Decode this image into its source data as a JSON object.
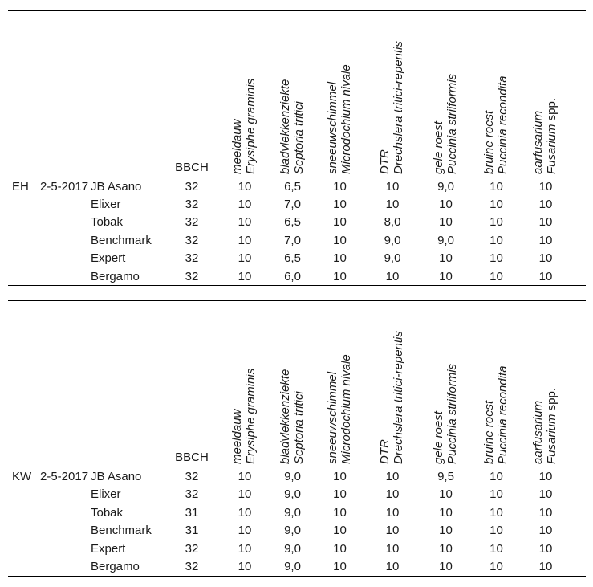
{
  "labels": {
    "bbch": "BBCH"
  },
  "disease_columns": [
    {
      "dutch": "meeldauw",
      "latin": "Erysiphe graminis",
      "latin_suffix": ""
    },
    {
      "dutch": "bladvlekkenziekte",
      "latin": "Septoria tritici",
      "latin_suffix": ""
    },
    {
      "dutch": "sneeuwschimmel",
      "latin": "Microdochium nivale",
      "latin_suffix": ""
    },
    {
      "dutch": "DTR",
      "latin": "Drechslera tritici-repentis",
      "latin_suffix": ""
    },
    {
      "dutch": "gele roest",
      "latin": "Puccinia striiformis",
      "latin_suffix": ""
    },
    {
      "dutch": "bruine roest",
      "latin": "Puccinia recondita",
      "latin_suffix": ""
    },
    {
      "dutch": "aarfusarium",
      "latin": "Fusarium",
      "latin_suffix": " spp."
    }
  ],
  "tables": [
    {
      "site": "EH",
      "date": "2-5-2017",
      "rows": [
        {
          "variety": "JB Asano",
          "bbch": "32",
          "values": [
            "10",
            "6,5",
            "10",
            "10",
            "9,0",
            "10",
            "10"
          ]
        },
        {
          "variety": "Elixer",
          "bbch": "32",
          "values": [
            "10",
            "7,0",
            "10",
            "10",
            "10",
            "10",
            "10"
          ]
        },
        {
          "variety": "Tobak",
          "bbch": "32",
          "values": [
            "10",
            "6,5",
            "10",
            "8,0",
            "10",
            "10",
            "10"
          ]
        },
        {
          "variety": "Benchmark",
          "bbch": "32",
          "values": [
            "10",
            "7,0",
            "10",
            "9,0",
            "9,0",
            "10",
            "10"
          ]
        },
        {
          "variety": "Expert",
          "bbch": "32",
          "values": [
            "10",
            "6,5",
            "10",
            "9,0",
            "10",
            "10",
            "10"
          ]
        },
        {
          "variety": "Bergamo",
          "bbch": "32",
          "values": [
            "10",
            "6,0",
            "10",
            "10",
            "10",
            "10",
            "10"
          ]
        }
      ]
    },
    {
      "site": "KW",
      "date": "2-5-2017",
      "rows": [
        {
          "variety": "JB Asano",
          "bbch": "32",
          "values": [
            "10",
            "9,0",
            "10",
            "10",
            "9,5",
            "10",
            "10"
          ]
        },
        {
          "variety": "Elixer",
          "bbch": "32",
          "values": [
            "10",
            "9,0",
            "10",
            "10",
            "10",
            "10",
            "10"
          ]
        },
        {
          "variety": "Tobak",
          "bbch": "31",
          "values": [
            "10",
            "9,0",
            "10",
            "10",
            "10",
            "10",
            "10"
          ]
        },
        {
          "variety": "Benchmark",
          "bbch": "31",
          "values": [
            "10",
            "9,0",
            "10",
            "10",
            "10",
            "10",
            "10"
          ]
        },
        {
          "variety": "Expert",
          "bbch": "32",
          "values": [
            "10",
            "9,0",
            "10",
            "10",
            "10",
            "10",
            "10"
          ]
        },
        {
          "variety": "Bergamo",
          "bbch": "32",
          "values": [
            "10",
            "9,0",
            "10",
            "10",
            "10",
            "10",
            "10"
          ]
        }
      ]
    }
  ]
}
